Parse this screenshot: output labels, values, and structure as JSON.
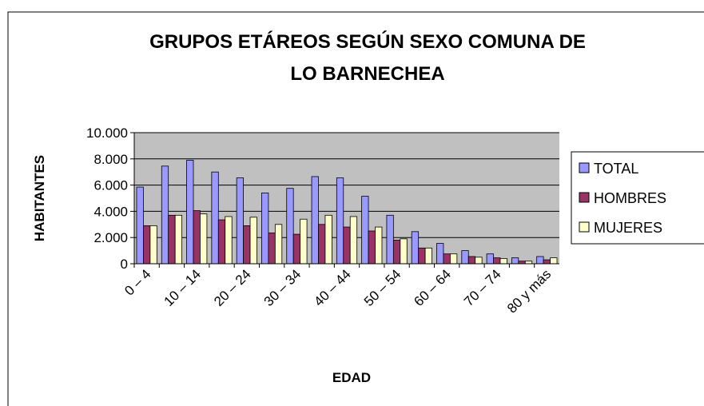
{
  "chart_data": {
    "type": "bar",
    "title": [
      "GRUPOS ETÁREOS SEGÚN SEXO COMUNA DE",
      "LO BARNECHEA"
    ],
    "x_label": "EDAD",
    "y_label": "HABITANTES",
    "categories": [
      "0 – 4",
      null,
      "10 – 14",
      null,
      "20 – 24",
      null,
      "30 – 34",
      null,
      "40 – 44",
      null,
      "50 – 54",
      null,
      "60 – 64",
      null,
      "70 – 74",
      null,
      "80  y más"
    ],
    "series": [
      {
        "name": "TOTAL",
        "color": "#9999ff",
        "values": [
          5850,
          7450,
          7900,
          7000,
          6550,
          5400,
          5750,
          6650,
          6550,
          5150,
          3700,
          2450,
          1550,
          1000,
          750,
          450,
          550
        ]
      },
      {
        "name": "HOMBRES",
        "color": "#993366",
        "values": [
          2900,
          3700,
          4050,
          3350,
          2900,
          2350,
          2250,
          3000,
          2800,
          2500,
          1800,
          1200,
          750,
          550,
          450,
          200,
          300
        ]
      },
      {
        "name": "MUJERES",
        "color": "#ffffcc",
        "values": [
          2900,
          3700,
          3800,
          3600,
          3550,
          3000,
          3400,
          3700,
          3600,
          2800,
          1900,
          1200,
          750,
          500,
          400,
          200,
          450
        ]
      }
    ],
    "ylim": [
      0,
      10000
    ],
    "yticks": [
      0,
      {
        "value": 2000,
        "label": "2.000"
      },
      {
        "value": 4000,
        "label": "4.000"
      },
      {
        "value": 6000,
        "label": "6.000"
      },
      {
        "value": 8000,
        "label": "8.000"
      },
      {
        "value": 10000,
        "label": "10.000"
      }
    ],
    "grid": true,
    "legend": "right",
    "plot_background": "#c0c0c0"
  }
}
